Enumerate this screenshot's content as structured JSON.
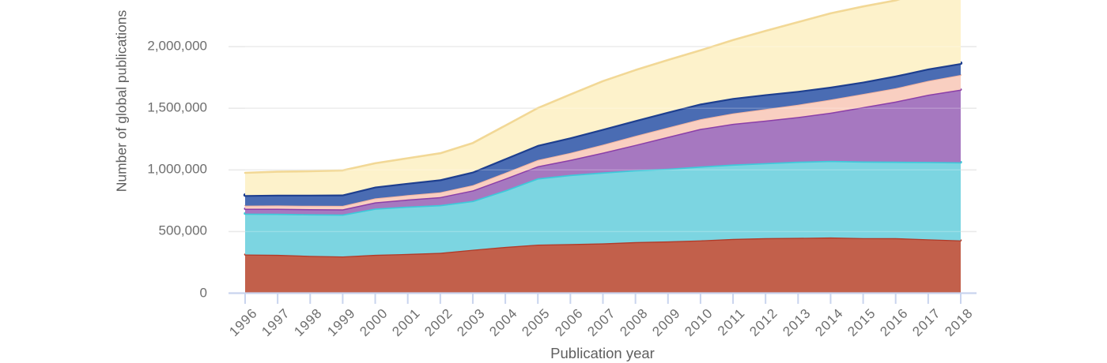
{
  "chart": {
    "x_axis_title": "Publication year",
    "y_axis_title": "Number of global publications",
    "background_color": "#ffffff",
    "gridline_color": "#eaeaea",
    "axis_line_color": "#c9d4ee",
    "tick_label_color": "#6e6e6e",
    "axis_title_color": "#5f5f5f",
    "legend": "none-visible"
  },
  "chart_data": {
    "type": "area",
    "stacked": true,
    "title": "",
    "xlabel": "Publication year",
    "ylabel": "Number of global publications",
    "x": [
      1996,
      1997,
      1998,
      1999,
      2000,
      2001,
      2002,
      2003,
      2004,
      2005,
      2006,
      2007,
      2008,
      2009,
      2010,
      2011,
      2012,
      2013,
      2014,
      2015,
      2016,
      2017,
      2018
    ],
    "ylim": [
      0,
      2380000
    ],
    "grid": true,
    "legend_position": "none",
    "yticks": [
      {
        "value": 0,
        "label": "0"
      },
      {
        "value": 500000,
        "label": "500,000"
      },
      {
        "value": 1000000,
        "label": "1,000,000"
      },
      {
        "value": 1500000,
        "label": "1,500,000"
      },
      {
        "value": 2000000,
        "label": "2,000,000"
      }
    ],
    "note": "stack order bottom to top; series have no visible legend names, identified by color; top cream series is clipped by the image top edge after ~2016",
    "series": [
      {
        "name": "terracotta-red-bottom-band",
        "fill": "#c2604b",
        "stroke": "#b23a28",
        "values": [
          314000,
          311000,
          303000,
          298000,
          311000,
          318000,
          327000,
          352000,
          375000,
          394000,
          398000,
          404000,
          414000,
          420000,
          428000,
          440000,
          446000,
          449000,
          452000,
          447000,
          446000,
          437000,
          428000
        ]
      },
      {
        "name": "cyan-band",
        "fill": "#7cd5e1",
        "stroke": "#3ec9da",
        "values": [
          332000,
          334000,
          338000,
          340000,
          376000,
          385000,
          388000,
          397000,
          460000,
          538000,
          562000,
          576000,
          584000,
          590000,
          600000,
          604000,
          610000,
          618000,
          622000,
          622000,
          621000,
          628000,
          634000
        ]
      },
      {
        "name": "purple-band",
        "fill": "#a678c0",
        "stroke": "#8b3fa8",
        "values": [
          39000,
          40000,
          41000,
          42000,
          50000,
          57000,
          65000,
          85000,
          95000,
          98000,
          122000,
          160000,
          205000,
          258000,
          305000,
          330000,
          345000,
          362000,
          390000,
          440000,
          488000,
          545000,
          590000
        ]
      },
      {
        "name": "pink-band",
        "fill": "#f9cfc1",
        "stroke": "#f3b4a0",
        "values": [
          25000,
          26000,
          27000,
          28000,
          32000,
          35000,
          38000,
          42000,
          46000,
          50000,
          56000,
          64000,
          72000,
          76000,
          78000,
          84000,
          92000,
          100000,
          106000,
          107000,
          107000,
          112000,
          118000
        ]
      },
      {
        "name": "steel-blue-band",
        "fill": "#4a6cb3",
        "stroke": "#1e3f8f",
        "values": [
          86000,
          88000,
          90000,
          92000,
          95000,
          100000,
          105000,
          110000,
          118000,
          122000,
          126000,
          128000,
          128000,
          128000,
          127000,
          125000,
          120000,
          112000,
          105000,
          100000,
          103000,
          100000,
          96000
        ]
      },
      {
        "name": "cream-yellow-top-band",
        "fill": "#fdf2cb",
        "stroke": "#f2d896",
        "values": [
          180000,
          186000,
          190000,
          196000,
          190000,
          200000,
          212000,
          232000,
          266000,
          300000,
          348000,
          388000,
          407000,
          420000,
          432000,
          470000,
          515000,
          558000,
          595000,
          610000,
          610000,
          635000,
          655000
        ]
      }
    ]
  }
}
